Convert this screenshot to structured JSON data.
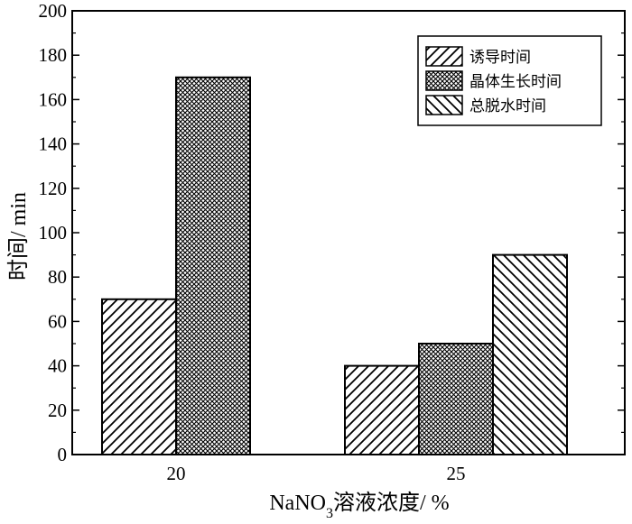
{
  "chart_data": {
    "type": "bar",
    "categories": [
      "20",
      "25"
    ],
    "series": [
      {
        "name": "诱导时间",
        "values": [
          70,
          40
        ],
        "pattern": "diagonal-forward"
      },
      {
        "name": "晶体生长时间",
        "values": [
          170,
          50
        ],
        "pattern": "crosshatch"
      },
      {
        "name": "总脱水时间",
        "values": [
          null,
          90
        ],
        "pattern": "diagonal-backward"
      }
    ],
    "ylim": [
      0,
      200
    ],
    "yticks": [
      "0",
      "20",
      "40",
      "60",
      "80",
      "100",
      "120",
      "140",
      "160",
      "180",
      "200"
    ],
    "ylabel": "时间/ min",
    "xlabel": {
      "prefix": "NaNO",
      "subscript": "3",
      "suffix": "溶液浓度/ %"
    },
    "legend_position": "top-right",
    "grid": false,
    "colors": {
      "ink": "#000000",
      "background": "#ffffff"
    }
  }
}
